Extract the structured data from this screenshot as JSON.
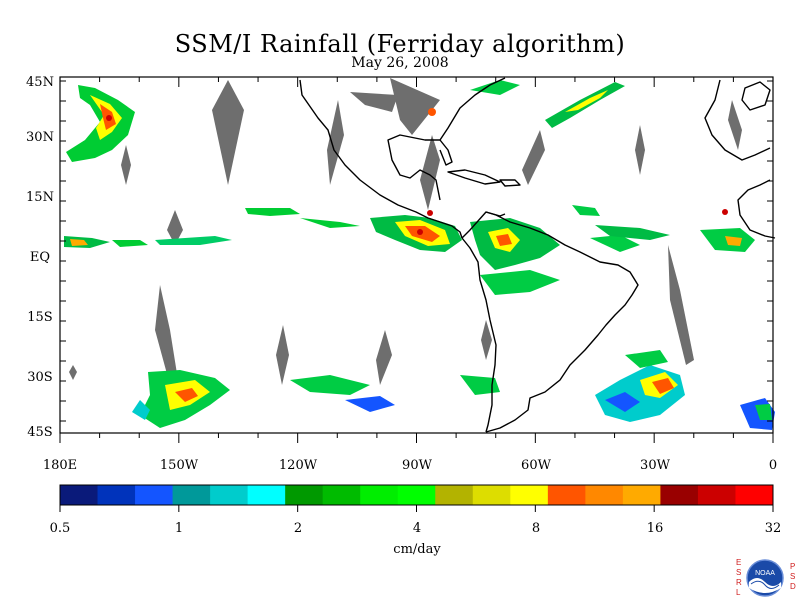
{
  "title": "SSM/I Rainfall (Ferriday algorithm)",
  "subtitle": "May 26, 2008",
  "lat_labels": [
    "45N",
    "30N",
    "15N",
    "EQ",
    "15S",
    "30S",
    "45S"
  ],
  "lon_labels": [
    "180E",
    "150W",
    "120W",
    "90W",
    "60W",
    "30W",
    "0"
  ],
  "colorbar": {
    "colors": [
      "#0a1a7a",
      "#0033bb",
      "#1455ff",
      "#00999a",
      "#00cccc",
      "#00ffff",
      "#009900",
      "#00bb00",
      "#00ee00",
      "#00ff00",
      "#b3b300",
      "#dddd00",
      "#ffff00",
      "#ff5500",
      "#ff8800",
      "#ffaa00",
      "#990000",
      "#cc0000",
      "#ff0000"
    ],
    "tick_labels": [
      "0.5",
      "1",
      "2",
      "4",
      "8",
      "16",
      "32"
    ],
    "unit": "cm/day"
  },
  "logo": {
    "letters_left": [
      "E",
      "S",
      "R",
      "L"
    ],
    "letters_right": [
      "P",
      "S",
      "D"
    ],
    "emblem_text": "NOAA"
  },
  "colors": {
    "land_outline": "#000000",
    "swath_gap": "#6e6e6e"
  }
}
